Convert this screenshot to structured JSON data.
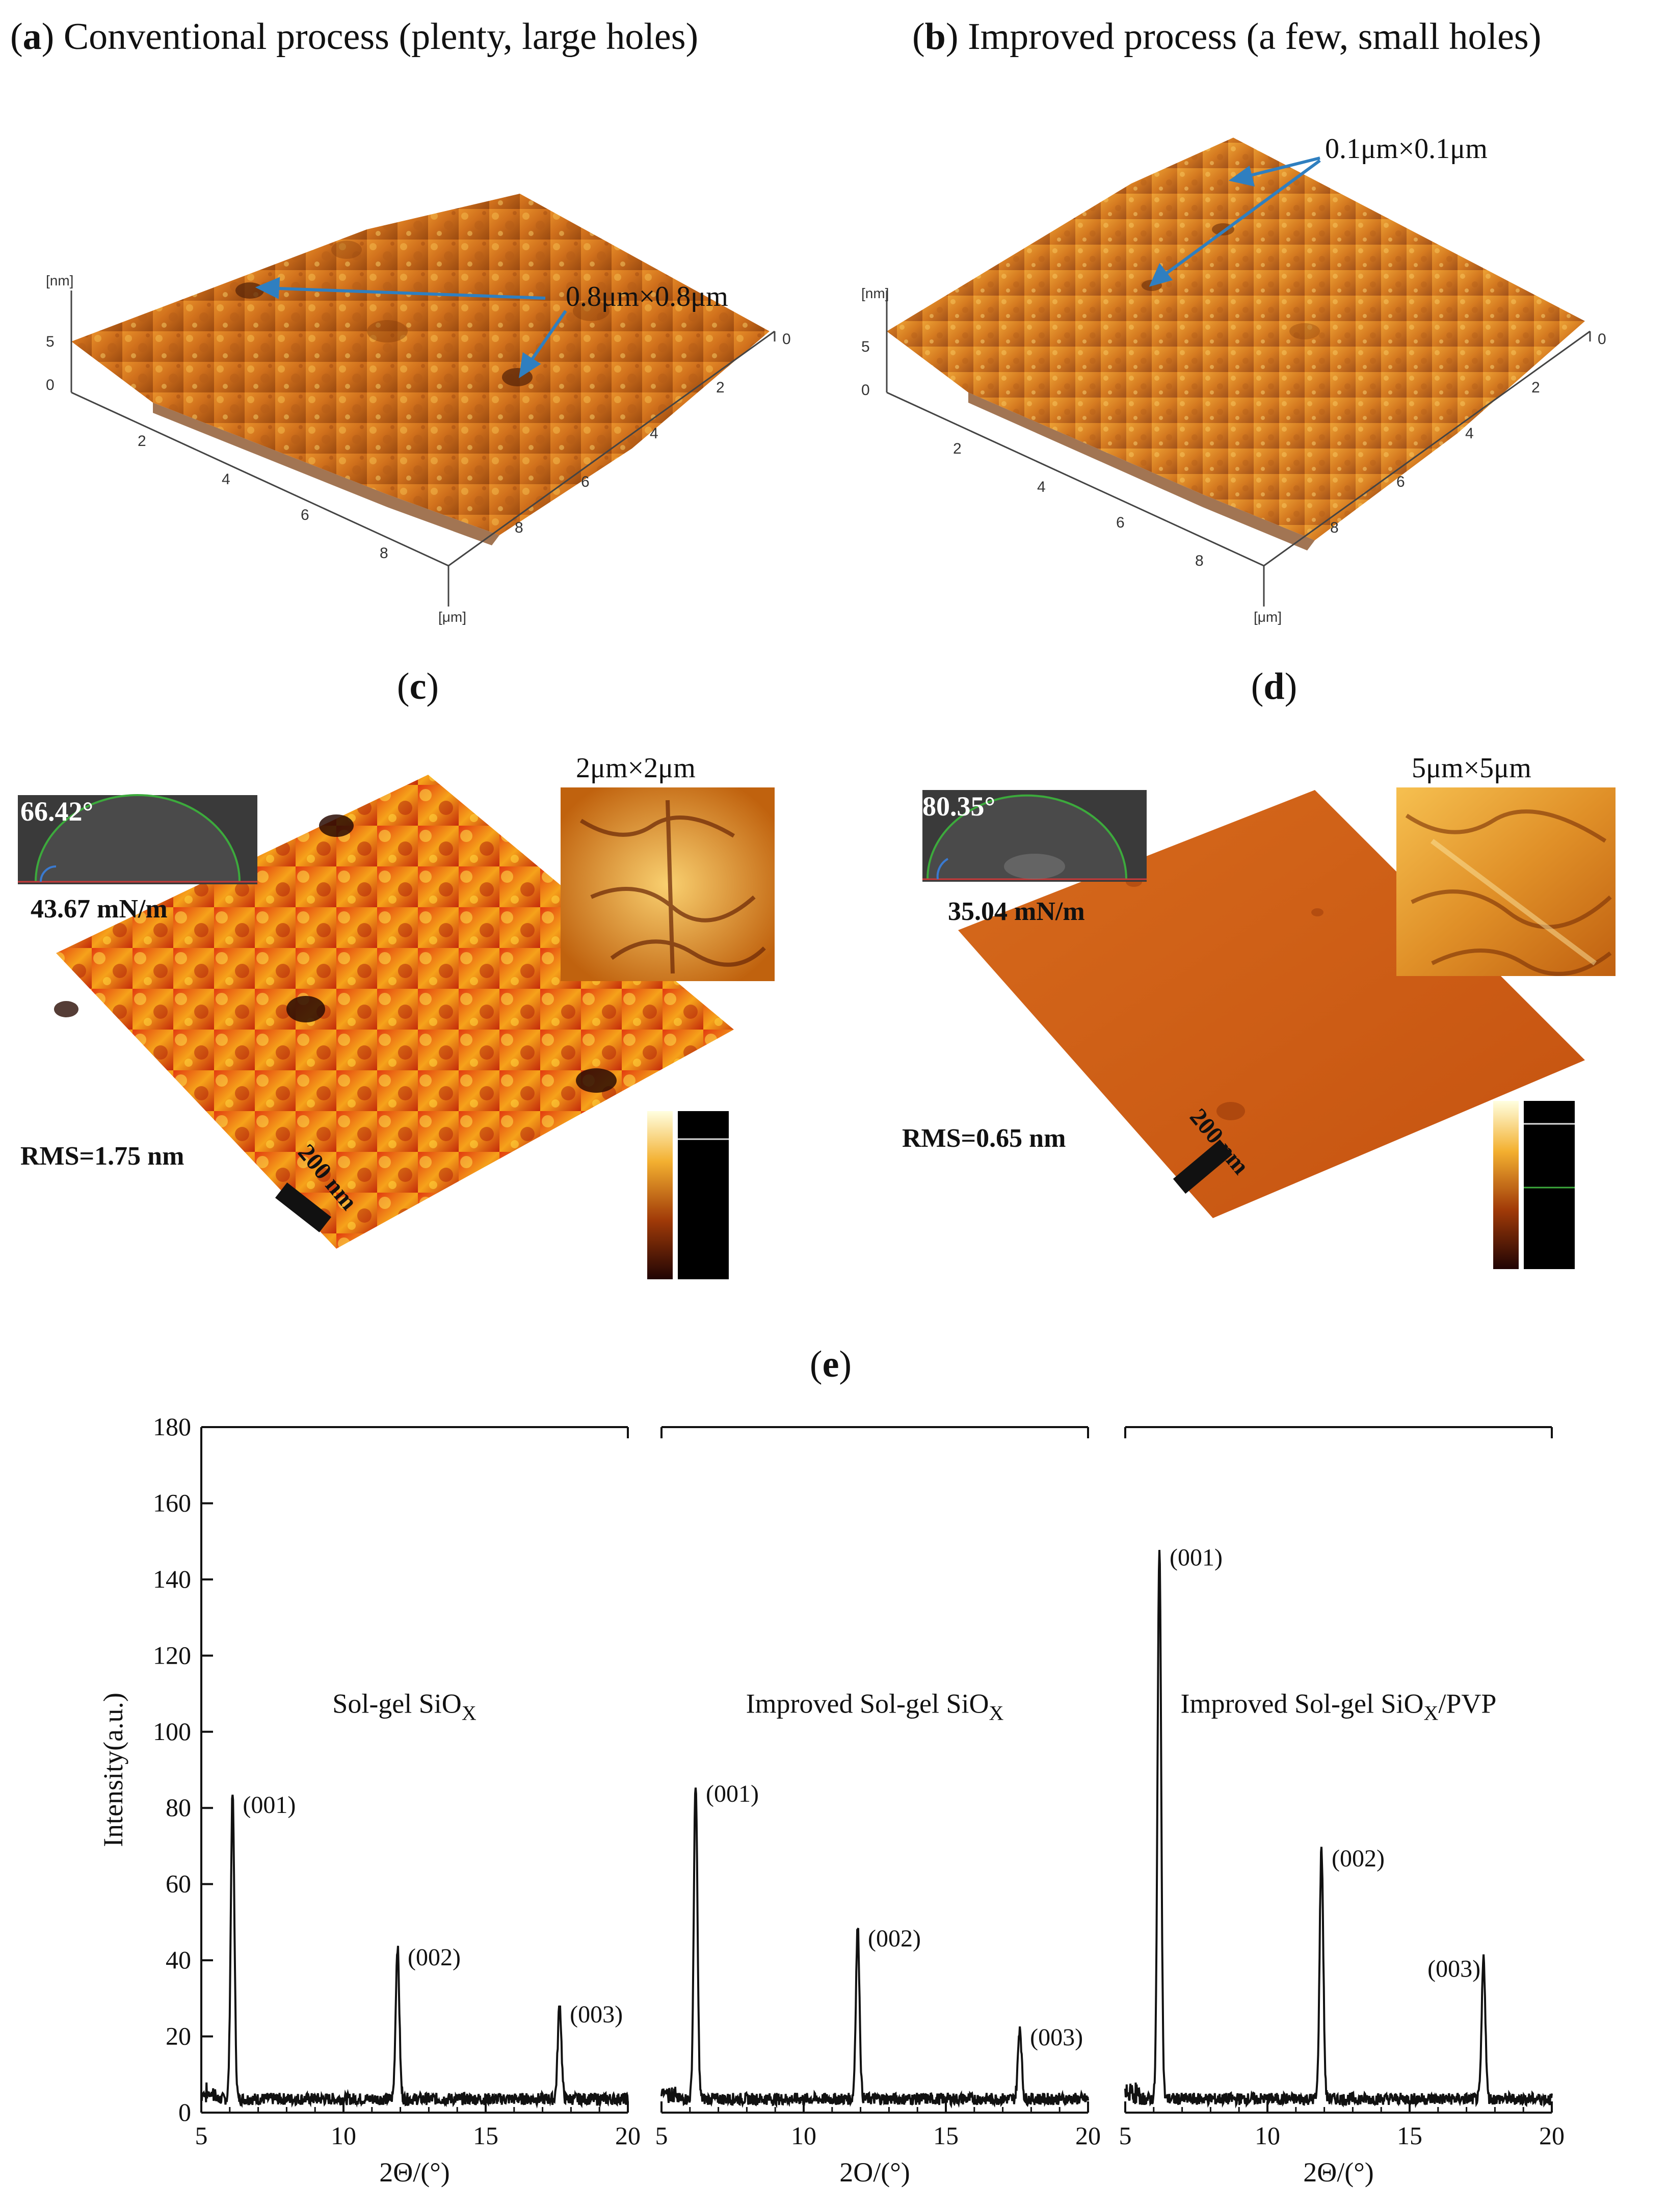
{
  "panel_a": {
    "letter": "a",
    "title": "Conventional process (plenty, large holes)",
    "annotation": "0.8μm×0.8μm",
    "z_unit": "[nm]",
    "z_ticks": [
      "5",
      "0"
    ],
    "x_ticks": [
      "2",
      "4",
      "6",
      "8"
    ],
    "y_ticks": [
      "0",
      "2",
      "4",
      "6",
      "8"
    ],
    "xy_unit": "[μm]"
  },
  "panel_b": {
    "letter": "b",
    "title": "Improved process (a few, small holes)",
    "annotation": "0.1μm×0.1μm",
    "z_unit": "[nm]",
    "z_ticks": [
      "5",
      "0"
    ],
    "x_ticks": [
      "2",
      "4",
      "6",
      "8"
    ],
    "y_ticks": [
      "0",
      "2",
      "4",
      "6",
      "8"
    ],
    "xy_unit": "[μm]"
  },
  "panel_c": {
    "letter": "c",
    "contact_angle": "66.42°",
    "surface_energy": "43.67 mN/m",
    "inset_label": "2μm×2μm",
    "rms": "RMS=1.75 nm",
    "scale_bar": "200 nm"
  },
  "panel_d": {
    "letter": "d",
    "contact_angle": "80.35°",
    "surface_energy": "35.04 mN/m",
    "inset_label": "5μm×5μm",
    "rms": "RMS=0.65 nm",
    "scale_bar": "200 nm"
  },
  "panel_e": {
    "letter": "e"
  },
  "chart_data": {
    "type": "line",
    "title": "",
    "ylabel": "Intensity(a.u.)",
    "xlabel": "2Θ/(°)",
    "xlabels": [
      "2Θ/(°)",
      "2O/(°)",
      "2Θ/(°)"
    ],
    "ylim": [
      0,
      180
    ],
    "yticks": [
      "0",
      "20",
      "40",
      "60",
      "80",
      "100",
      "120",
      "140",
      "160",
      "180"
    ],
    "xlim": [
      5,
      20
    ],
    "xticks": [
      "5",
      "10",
      "15",
      "20"
    ],
    "series": [
      {
        "name": "Sol-gel SiOX",
        "label_main": "Sol-gel SiO",
        "label_sub": "X",
        "label_tail": "",
        "peaks": [
          {
            "x": 6.1,
            "y": 80,
            "label": "(001)"
          },
          {
            "x": 11.9,
            "y": 40,
            "label": "(002)"
          },
          {
            "x": 17.6,
            "y": 25,
            "label": "(003)"
          }
        ]
      },
      {
        "name": "Improved Sol-gel SiOX",
        "label_main": "Improved Sol-gel SiO",
        "label_sub": "X",
        "label_tail": "",
        "peaks": [
          {
            "x": 6.2,
            "y": 83,
            "label": "(001)"
          },
          {
            "x": 11.9,
            "y": 45,
            "label": "(002)"
          },
          {
            "x": 17.6,
            "y": 19,
            "label": "(003)"
          }
        ]
      },
      {
        "name": "Improved Sol-gel SiOX/PVP",
        "label_main": "Improved Sol-gel SiO",
        "label_sub": "X",
        "label_tail": "/PVP",
        "peaks": [
          {
            "x": 6.2,
            "y": 145,
            "label": "(001)"
          },
          {
            "x": 11.9,
            "y": 66,
            "label": "(002)"
          },
          {
            "x": 17.6,
            "y": 37,
            "label": "(003)"
          }
        ]
      }
    ]
  }
}
